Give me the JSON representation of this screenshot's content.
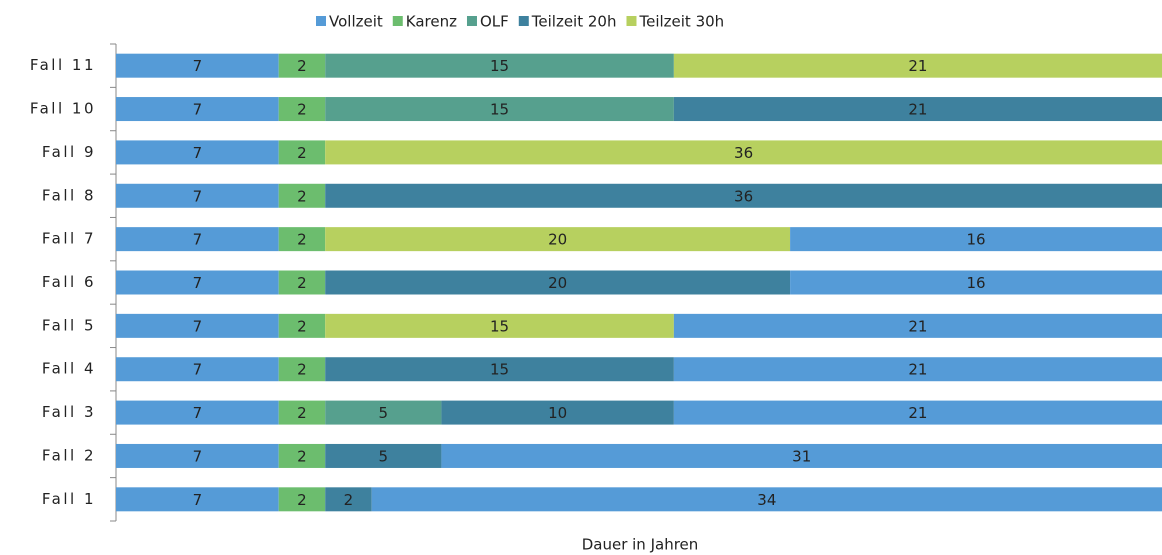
{
  "chart_data": {
    "type": "stacked-bar-horizontal",
    "x_label": "Dauer in Jahren",
    "xlim": [
      0,
      45
    ],
    "series": [
      {
        "name": "Vollzeit",
        "color": "#559bd7"
      },
      {
        "name": "Karenz",
        "color": "#6cbd6e"
      },
      {
        "name": "OLF",
        "color": "#56a08e"
      },
      {
        "name": "Teilzeit 20h",
        "color": "#3e819e"
      },
      {
        "name": "Teilzeit 30h",
        "color": "#b7d05f"
      }
    ],
    "categories": [
      "Fall 1",
      "Fall 2",
      "Fall 3",
      "Fall 4",
      "Fall 5",
      "Fall 6",
      "Fall 7",
      "Fall 8",
      "Fall 9",
      "Fall 10",
      "Fall 11"
    ],
    "bars": [
      {
        "segments": [
          {
            "name": "Vollzeit",
            "value": 7
          },
          {
            "name": "Karenz",
            "value": 2
          },
          {
            "name": "Teilzeit 20h",
            "value": 2
          },
          {
            "name": "Vollzeit",
            "value": 34
          }
        ]
      },
      {
        "segments": [
          {
            "name": "Vollzeit",
            "value": 7
          },
          {
            "name": "Karenz",
            "value": 2
          },
          {
            "name": "Teilzeit 20h",
            "value": 5
          },
          {
            "name": "Vollzeit",
            "value": 31
          }
        ]
      },
      {
        "segments": [
          {
            "name": "Vollzeit",
            "value": 7
          },
          {
            "name": "Karenz",
            "value": 2
          },
          {
            "name": "OLF",
            "value": 5
          },
          {
            "name": "Teilzeit 20h",
            "value": 10
          },
          {
            "name": "Vollzeit",
            "value": 21
          }
        ]
      },
      {
        "segments": [
          {
            "name": "Vollzeit",
            "value": 7
          },
          {
            "name": "Karenz",
            "value": 2
          },
          {
            "name": "Teilzeit 20h",
            "value": 15
          },
          {
            "name": "Vollzeit",
            "value": 21
          }
        ]
      },
      {
        "segments": [
          {
            "name": "Vollzeit",
            "value": 7
          },
          {
            "name": "Karenz",
            "value": 2
          },
          {
            "name": "Teilzeit 30h",
            "value": 15
          },
          {
            "name": "Vollzeit",
            "value": 21
          }
        ]
      },
      {
        "segments": [
          {
            "name": "Vollzeit",
            "value": 7
          },
          {
            "name": "Karenz",
            "value": 2
          },
          {
            "name": "Teilzeit 20h",
            "value": 20
          },
          {
            "name": "Vollzeit",
            "value": 16
          }
        ]
      },
      {
        "segments": [
          {
            "name": "Vollzeit",
            "value": 7
          },
          {
            "name": "Karenz",
            "value": 2
          },
          {
            "name": "Teilzeit 30h",
            "value": 20
          },
          {
            "name": "Vollzeit",
            "value": 16
          }
        ]
      },
      {
        "segments": [
          {
            "name": "Vollzeit",
            "value": 7
          },
          {
            "name": "Karenz",
            "value": 2
          },
          {
            "name": "Teilzeit 20h",
            "value": 36
          }
        ]
      },
      {
        "segments": [
          {
            "name": "Vollzeit",
            "value": 7
          },
          {
            "name": "Karenz",
            "value": 2
          },
          {
            "name": "Teilzeit 30h",
            "value": 36
          }
        ]
      },
      {
        "segments": [
          {
            "name": "Vollzeit",
            "value": 7
          },
          {
            "name": "Karenz",
            "value": 2
          },
          {
            "name": "OLF",
            "value": 15
          },
          {
            "name": "Teilzeit 20h",
            "value": 21
          }
        ]
      },
      {
        "segments": [
          {
            "name": "Vollzeit",
            "value": 7
          },
          {
            "name": "Karenz",
            "value": 2
          },
          {
            "name": "OLF",
            "value": 15
          },
          {
            "name": "Teilzeit 30h",
            "value": 21
          }
        ]
      }
    ]
  }
}
